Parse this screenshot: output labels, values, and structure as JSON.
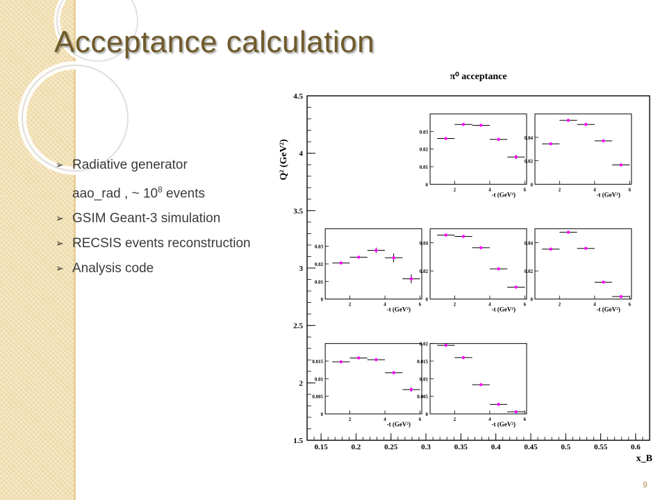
{
  "slide": {
    "title": "Acceptance calculation",
    "page_number": "9",
    "bullets": [
      {
        "text": "Radiative generator",
        "has_arrow": true
      },
      {
        "text_before": "aao_rad , ~ 10",
        "sup": "8",
        "text_after": " events",
        "has_arrow": false
      },
      {
        "text": "GSIM   Geant-3 simulation",
        "has_arrow": true
      },
      {
        "text": "RECSIS  events reconstruction",
        "has_arrow": true
      },
      {
        "text": "Analysis code",
        "has_arrow": true
      }
    ]
  },
  "colors": {
    "title": "#6f5a2a",
    "marker": "#ff00ff",
    "strip": "#f2dfb0"
  },
  "chart_data": {
    "type": "scatter",
    "title": "π⁰ acceptance",
    "xlabel": "x_B",
    "ylabel": "Q² (GeV²)",
    "x_ticks": [
      "0.15",
      "0.2",
      "0.25",
      "0.3",
      "0.35",
      "0.4",
      "0.45",
      "0.5",
      "0.55",
      "0.6"
    ],
    "y_ticks": [
      "1.5",
      "2",
      "2.5",
      "3",
      "3.5",
      "4",
      "4.5"
    ],
    "xlim": [
      0.13,
      0.62
    ],
    "ylim": [
      1.5,
      4.5
    ],
    "subplot_xlabel": "-t (GeV²)",
    "subplot_x_ticks": [
      "2",
      "4",
      "6"
    ],
    "subplot_xlim": [
      0.6,
      6.1
    ],
    "subplots": [
      {
        "xb_range": [
          0.3,
          0.45
        ],
        "q2_range": [
          3.5,
          4.5
        ],
        "ylim": [
          0,
          0.04
        ],
        "yticks": [
          "0.01",
          "0.02",
          "0.03"
        ],
        "x": [
          1.5,
          2.5,
          3.5,
          4.5,
          5.5
        ],
        "values": [
          0.026,
          0.034,
          0.0335,
          0.0255,
          0.0155
        ],
        "errors": [
          0.0004,
          0.0005,
          0.0005,
          0.0008,
          0.0012
        ]
      },
      {
        "xb_range": [
          0.45,
          0.6
        ],
        "q2_range": [
          3.5,
          4.5
        ],
        "ylim": [
          0,
          0.06
        ],
        "yticks": [
          "0.02",
          "0.04"
        ],
        "x": [
          1.5,
          2.5,
          3.5,
          4.5,
          5.5
        ],
        "values": [
          0.0345,
          0.0545,
          0.051,
          0.037,
          0.0165
        ],
        "errors": [
          0.0006,
          0.0008,
          0.0008,
          0.0008,
          0.0006
        ]
      },
      {
        "xb_range": [
          0.15,
          0.3
        ],
        "q2_range": [
          2.5,
          3.5
        ],
        "ylim": [
          0,
          0.04
        ],
        "yticks": [
          "0.01",
          "0.02",
          "0.03"
        ],
        "x": [
          1.5,
          2.5,
          3.5,
          4.5,
          5.5
        ],
        "values": [
          0.0205,
          0.0238,
          0.0277,
          0.0235,
          0.0115
        ],
        "errors": [
          0.0005,
          0.0005,
          0.0015,
          0.0025,
          0.0025
        ]
      },
      {
        "xb_range": [
          0.3,
          0.45
        ],
        "q2_range": [
          2.5,
          3.5
        ],
        "ylim": [
          0,
          0.05
        ],
        "yticks": [
          "0.02",
          "0.04"
        ],
        "x": [
          1.5,
          2.5,
          3.5,
          4.5,
          5.5
        ],
        "values": [
          0.0455,
          0.0445,
          0.0365,
          0.0215,
          0.0085
        ],
        "errors": [
          0.0004,
          0.0004,
          0.0004,
          0.0004,
          0.0004
        ]
      },
      {
        "xb_range": [
          0.45,
          0.6
        ],
        "q2_range": [
          2.5,
          3.5
        ],
        "ylim": [
          0,
          0.05
        ],
        "yticks": [
          "0.02",
          "0.04"
        ],
        "x": [
          1.5,
          2.5,
          3.5,
          4.5,
          5.5
        ],
        "values": [
          0.0355,
          0.0475,
          0.036,
          0.012,
          0.0018
        ],
        "errors": [
          0.0004,
          0.0004,
          0.0004,
          0.0004,
          0.0003
        ]
      },
      {
        "xb_range": [
          0.15,
          0.3
        ],
        "q2_range": [
          1.5,
          2.5
        ],
        "ylim": [
          0,
          0.02
        ],
        "yticks": [
          "0.005",
          "0.01",
          "0.015"
        ],
        "x": [
          1.5,
          2.5,
          3.5,
          4.5,
          5.5
        ],
        "values": [
          0.0148,
          0.0159,
          0.0154,
          0.0117,
          0.0069
        ],
        "errors": [
          0.0003,
          0.0003,
          0.0003,
          0.0004,
          0.0006
        ]
      },
      {
        "xb_range": [
          0.3,
          0.45
        ],
        "q2_range": [
          1.5,
          2.5
        ],
        "ylim": [
          0,
          0.02
        ],
        "yticks": [
          "0.005",
          "0.01",
          "0.015",
          "0.02"
        ],
        "x": [
          1.5,
          2.5,
          3.5,
          4.5,
          5.5
        ],
        "values": [
          0.0195,
          0.016,
          0.0083,
          0.0027,
          0.0006
        ],
        "errors": [
          0.0003,
          0.0003,
          0.0003,
          0.0002,
          0.0002
        ]
      }
    ]
  }
}
